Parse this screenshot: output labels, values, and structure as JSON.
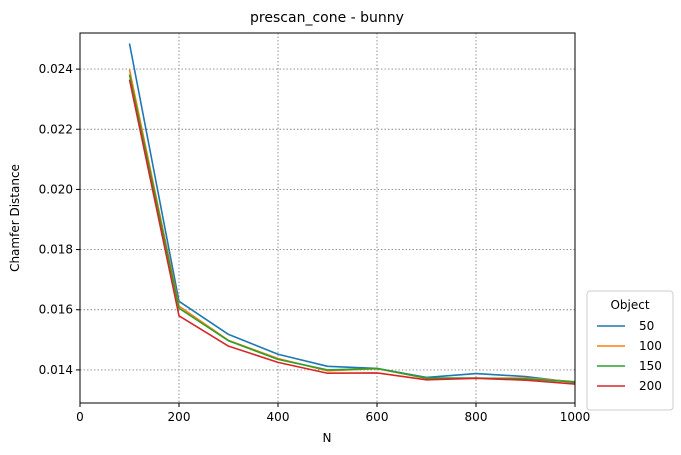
{
  "chart_data": {
    "type": "line",
    "title": "prescan_cone - bunny",
    "xlabel": "N",
    "ylabel": "Chamfer Distance",
    "xlim": [
      0,
      1000
    ],
    "ylim": [
      0.0129,
      0.0252
    ],
    "xticks": [
      0,
      200,
      400,
      600,
      800,
      1000
    ],
    "yticks": [
      0.014,
      0.016,
      0.018,
      0.02,
      0.022,
      0.024
    ],
    "xtick_labels": [
      "0",
      "200",
      "400",
      "600",
      "800",
      "1000"
    ],
    "ytick_labels": [
      "0.014",
      "0.016",
      "0.018",
      "0.020",
      "0.022",
      "0.024"
    ],
    "grid": true,
    "legend": {
      "title": "Object",
      "placement": "outside-right-bottom"
    },
    "x": [
      100,
      200,
      300,
      400,
      500,
      600,
      700,
      800,
      900,
      1000
    ],
    "series": [
      {
        "name": "50",
        "color": "#1f77b4",
        "values": [
          0.02485,
          0.01628,
          0.01518,
          0.01452,
          0.01412,
          0.01405,
          0.01375,
          0.01388,
          0.01378,
          0.01358
        ]
      },
      {
        "name": "100",
        "color": "#ff7f0e",
        "values": [
          0.02398,
          0.01612,
          0.01498,
          0.01438,
          0.01397,
          0.01404,
          0.01372,
          0.01372,
          0.01373,
          0.01361
        ]
      },
      {
        "name": "150",
        "color": "#2ca02c",
        "values": [
          0.02382,
          0.01605,
          0.01497,
          0.01435,
          0.014,
          0.01405,
          0.01373,
          0.01373,
          0.0137,
          0.0136
        ]
      },
      {
        "name": "200",
        "color": "#d62728",
        "values": [
          0.02365,
          0.0158,
          0.01479,
          0.01425,
          0.01389,
          0.0139,
          0.01367,
          0.01372,
          0.01366,
          0.01353
        ]
      }
    ]
  }
}
